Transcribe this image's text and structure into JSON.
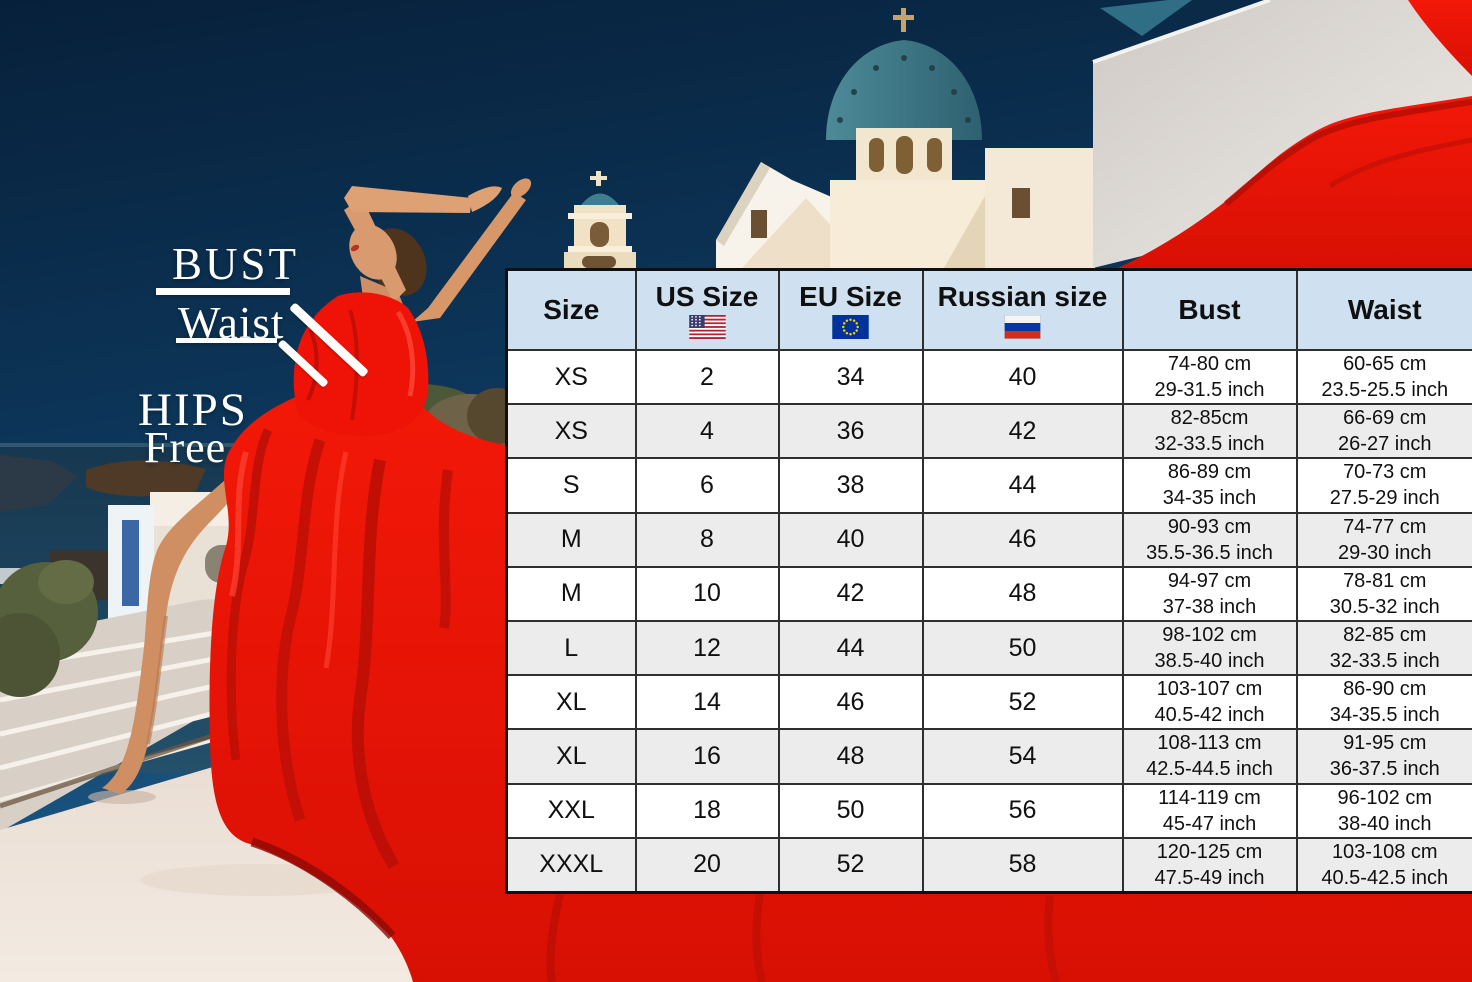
{
  "scene": {
    "labels": {
      "bust": "BUST",
      "waist": "Waist",
      "hips": "HIPS",
      "free": "Free"
    },
    "colors": {
      "sky_top": "#07203a",
      "sky_horizon": "#1e5c88",
      "sea": "#1d4360",
      "dress_red": "#ee1306",
      "dress_red_shadow": "#b30e05",
      "roof_white": "#efe6dd",
      "church_cream": "#f2e4cb",
      "dome_teal": "#43818f",
      "wall_white": "#ddd8d3",
      "label_white": "#ffffff"
    }
  },
  "size_chart": {
    "header_bg": "#cfe0f0",
    "row_bg": "#ffffff",
    "row_alt_bg": "#ececec",
    "border_color": "#2f2f2f",
    "text_color": "#101010"
  },
  "chart_data": {
    "type": "table",
    "columns": [
      {
        "label": "Size",
        "flag": null
      },
      {
        "label": "US Size",
        "flag": "us"
      },
      {
        "label": "EU Size",
        "flag": "eu"
      },
      {
        "label": "Russian size",
        "flag": "ru"
      },
      {
        "label": "Bust",
        "flag": null
      },
      {
        "label": "Waist",
        "flag": null
      }
    ],
    "rows": [
      {
        "size": "XS",
        "us": "2",
        "eu": "34",
        "ru": "40",
        "bust": [
          "74-80 cm",
          "29-31.5 inch"
        ],
        "waist": [
          "60-65 cm",
          "23.5-25.5 inch"
        ]
      },
      {
        "size": "XS",
        "us": "4",
        "eu": "36",
        "ru": "42",
        "bust": [
          "82-85cm",
          "32-33.5 inch"
        ],
        "waist": [
          "66-69 cm",
          "26-27 inch"
        ]
      },
      {
        "size": "S",
        "us": "6",
        "eu": "38",
        "ru": "44",
        "bust": [
          "86-89 cm",
          "34-35 inch"
        ],
        "waist": [
          "70-73 cm",
          "27.5-29 inch"
        ]
      },
      {
        "size": "M",
        "us": "8",
        "eu": "40",
        "ru": "46",
        "bust": [
          "90-93 cm",
          "35.5-36.5 inch"
        ],
        "waist": [
          "74-77 cm",
          "29-30 inch"
        ]
      },
      {
        "size": "M",
        "us": "10",
        "eu": "42",
        "ru": "48",
        "bust": [
          "94-97 cm",
          "37-38 inch"
        ],
        "waist": [
          "78-81 cm",
          "30.5-32 inch"
        ]
      },
      {
        "size": "L",
        "us": "12",
        "eu": "44",
        "ru": "50",
        "bust": [
          "98-102 cm",
          "38.5-40 inch"
        ],
        "waist": [
          "82-85 cm",
          "32-33.5 inch"
        ]
      },
      {
        "size": "XL",
        "us": "14",
        "eu": "46",
        "ru": "52",
        "bust": [
          "103-107 cm",
          "40.5-42 inch"
        ],
        "waist": [
          "86-90 cm",
          "34-35.5 inch"
        ]
      },
      {
        "size": "XL",
        "us": "16",
        "eu": "48",
        "ru": "54",
        "bust": [
          "108-113 cm",
          "42.5-44.5 inch"
        ],
        "waist": [
          "91-95 cm",
          "36-37.5 inch"
        ]
      },
      {
        "size": "XXL",
        "us": "18",
        "eu": "50",
        "ru": "56",
        "bust": [
          "114-119 cm",
          "45-47 inch"
        ],
        "waist": [
          "96-102 cm",
          "38-40 inch"
        ]
      },
      {
        "size": "XXXL",
        "us": "20",
        "eu": "52",
        "ru": "58",
        "bust": [
          "120-125 cm",
          "47.5-49 inch"
        ],
        "waist": [
          "103-108 cm",
          "40.5-42.5 inch"
        ]
      }
    ]
  }
}
